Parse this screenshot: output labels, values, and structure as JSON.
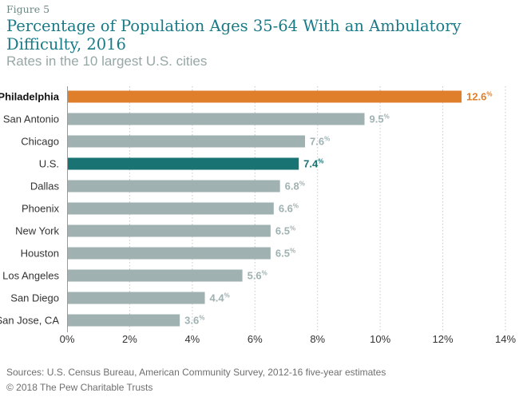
{
  "figure_label": "Figure 5",
  "title": "Percentage of Population Ages 35-64 With an Ambulatory Difficulty, 2016",
  "subtitle": "Rates in the 10 largest U.S. cities",
  "source": "Sources: U.S. Census Bureau, American Community Survey, 2012-16 five-year estimates",
  "copyright": "© 2018 The Pew Charitable Trusts",
  "colors": {
    "highlight": "#e07f2b",
    "us": "#1a7373",
    "default_bar": "#9fb2b1",
    "default_label": "#9fb2b1",
    "axis_text": "#333333",
    "grid": "#c8c8c8"
  },
  "chart_data": {
    "type": "bar",
    "orientation": "horizontal",
    "categories": [
      "Philadelphia",
      "San Antonio",
      "Chicago",
      "U.S.",
      "Dallas",
      "Phoenix",
      "New York",
      "Houston",
      "Los Angeles",
      "San Diego",
      "San Jose, CA"
    ],
    "values": [
      12.6,
      9.5,
      7.6,
      7.4,
      6.8,
      6.6,
      6.5,
      6.5,
      5.6,
      4.4,
      3.6
    ],
    "value_suffix": "%",
    "highlights": {
      "Philadelphia": "highlight",
      "U.S.": "us"
    },
    "xlim": [
      0,
      14
    ],
    "xticks": [
      0,
      2,
      4,
      6,
      8,
      10,
      12,
      14
    ],
    "xtick_suffix": "%",
    "grid": true,
    "grid_style": "dotted vertical",
    "title": "Percentage of Population Ages 35-64 With an Ambulatory Difficulty, 2016",
    "xlabel": "",
    "ylabel": ""
  }
}
